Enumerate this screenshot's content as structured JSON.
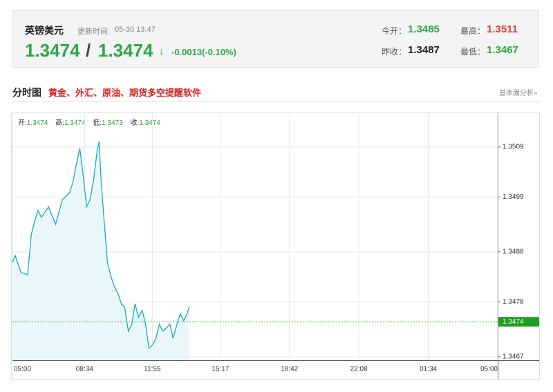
{
  "header": {
    "symbol": "英镑美元",
    "update_label": "更新时间:",
    "update_time": "05-30 13:47",
    "bid": "1.3474",
    "separator": "/",
    "ask": "1.3474",
    "arrow": "↓",
    "change": "-0.0013(-0.10%)",
    "stats": [
      {
        "label": "今开：",
        "value": "1.3485"
      },
      {
        "label": "最高：",
        "value": "1.3511"
      },
      {
        "label": "昨收：",
        "value": "1.3487"
      },
      {
        "label": "最低：",
        "value": "1.3467"
      }
    ]
  },
  "nav": {
    "title": "分时图",
    "promo": "黄金、外汇、原油、期货多空提醒软件",
    "link": "基本面分析»"
  },
  "chart_data": {
    "type": "line",
    "color": "#18a9c6",
    "fill": "#e9f7fb",
    "info": [
      {
        "label": "开:",
        "value": "1.3474"
      },
      {
        "label": "高:",
        "value": "1.3474"
      },
      {
        "label": "低:",
        "value": "1.3473"
      },
      {
        "label": "收:",
        "value": "1.3474"
      }
    ],
    "last_price": 1.3474,
    "x": [
      0,
      8,
      25,
      45,
      56,
      66,
      76,
      86,
      107,
      128,
      148,
      169,
      179,
      189,
      200,
      210,
      220,
      230,
      241,
      251,
      257,
      263,
      272,
      282,
      292,
      302,
      313,
      323,
      333,
      344,
      354,
      364,
      374,
      385,
      395,
      405,
      416,
      426,
      436,
      446,
      457,
      467,
      477,
      488,
      498,
      508,
      518,
      525
    ],
    "values": [
      1.34859,
      1.34873,
      1.34839,
      1.34834,
      1.34915,
      1.34942,
      1.34963,
      1.34949,
      1.3497,
      1.34935,
      1.34984,
      1.34998,
      1.35018,
      1.35053,
      1.35087,
      1.35032,
      1.3497,
      1.34984,
      1.35025,
      1.35081,
      1.35101,
      1.35025,
      1.34942,
      1.34859,
      1.34832,
      1.34811,
      1.34797,
      1.34776,
      1.3477,
      1.34721,
      1.34735,
      1.34776,
      1.34749,
      1.34763,
      1.34735,
      1.34687,
      1.34694,
      1.34707,
      1.34735,
      1.34721,
      1.34728,
      1.34735,
      1.34707,
      1.34735,
      1.34756,
      1.34742,
      1.34756,
      1.3477
    ],
    "xlim": [
      0,
      1440
    ],
    "xticks": [
      {
        "value": 0,
        "label": "05:00"
      },
      {
        "value": 214,
        "label": "08:34"
      },
      {
        "value": 415,
        "label": "11:55"
      },
      {
        "value": 617,
        "label": "15:17"
      },
      {
        "value": 822,
        "label": "18:42"
      },
      {
        "value": 1028,
        "label": "22:08"
      },
      {
        "value": 1234,
        "label": "01:34"
      },
      {
        "value": 1440,
        "label": "05:00"
      }
    ],
    "ylim": [
      1.34663,
      1.35159
    ],
    "yticks": [
      1.3467,
      1.3478,
      1.3488,
      1.3499,
      1.3509
    ],
    "grid": true
  }
}
